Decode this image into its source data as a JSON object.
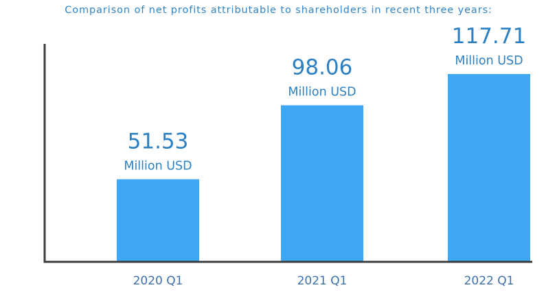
{
  "chart_data": {
    "type": "bar",
    "title": "Comparison of net profits attributable to shareholders in recent three years:",
    "categories": [
      "2020 Q1",
      "2021 Q1",
      "2022 Q1"
    ],
    "values": [
      51.53,
      98.06,
      117.71
    ],
    "value_labels": [
      "51.53",
      "98.06",
      "117.71"
    ],
    "unit_label": "Million USD",
    "ylim": [
      0,
      117.71
    ],
    "grid": false,
    "legend": "none",
    "colors": {
      "bar": "#3ea8f5",
      "label": "#2c7fc1",
      "tick": "#3b6fae",
      "title": "#2f84c8",
      "axis": "#3c3c3c"
    }
  }
}
